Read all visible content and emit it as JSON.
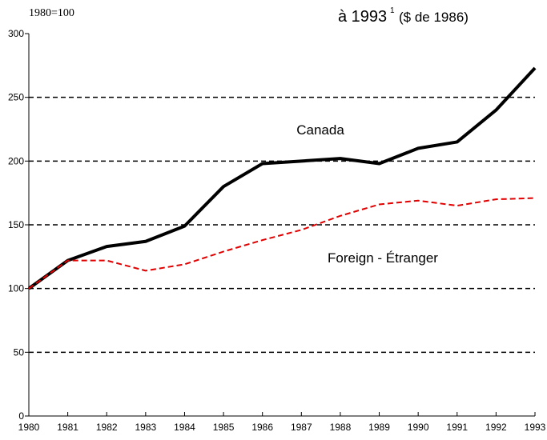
{
  "chart_data": {
    "type": "line",
    "subtitle": "1980=100",
    "title": "à 1993",
    "title_footnote": "1",
    "title_unit": "($ de 1986)",
    "categories": [
      "1980",
      "1981",
      "1982",
      "1983",
      "1984",
      "1985",
      "1986",
      "1987",
      "1988",
      "1989",
      "1990",
      "1991",
      "1992",
      "1993"
    ],
    "series": [
      {
        "name": "Canada",
        "color": "#000000",
        "values": [
          100,
          122,
          133,
          137,
          149,
          180,
          198,
          200,
          202,
          198,
          210,
          215,
          240,
          273
        ]
      },
      {
        "name": "Foreign - Étranger",
        "color": "#e00000",
        "values": [
          100,
          122,
          122,
          114,
          119,
          129,
          138,
          146,
          157,
          166,
          169,
          165,
          170,
          171
        ]
      }
    ],
    "ylim": [
      0,
      300
    ],
    "yticks": [
      0,
      50,
      100,
      150,
      200,
      250,
      300
    ],
    "grid": true
  }
}
